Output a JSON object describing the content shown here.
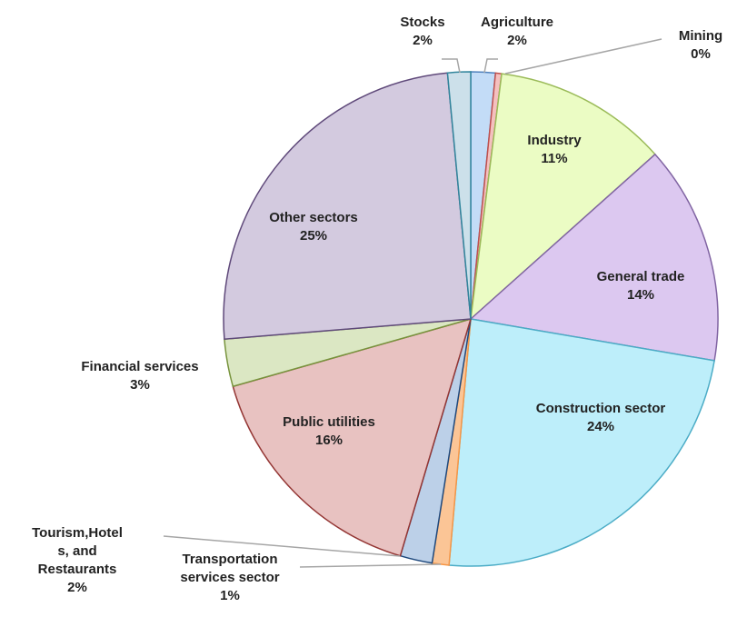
{
  "chart_data": {
    "type": "pie",
    "categories": [
      "Agriculture",
      "Mining",
      "Industry",
      "General trade",
      "Construction sector",
      "Transportation\nservices sector",
      "Tourism,Hotel\ns, and\nRestaurants",
      "Public utilities",
      "Financial services",
      "Other sectors",
      "Stocks"
    ],
    "values": [
      1.6,
      0.4,
      11.4,
      14.3,
      23.7,
      1.1,
      2.1,
      16.0,
      3.1,
      24.8,
      1.5
    ],
    "value_labels": [
      "2%",
      "0%",
      "11%",
      "14%",
      "24%",
      "1%",
      "2%",
      "16%",
      "3%",
      "25%",
      "2%"
    ],
    "colors": [
      "#c3dcf7",
      "#f4c0bf",
      "#ebfcc4",
      "#dcc8f0",
      "#bdeefa",
      "#fbc596",
      "#bcd0e8",
      "#e8c2c1",
      "#dbe7c3",
      "#d3cadf",
      "#cce0ea"
    ],
    "edge_colors": [
      "#4f81bd",
      "#c0504d",
      "#9bbb59",
      "#8064a2",
      "#4bacc6",
      "#f79646",
      "#1f497d",
      "#943634",
      "#77933c",
      "#5f497a",
      "#31859c"
    ]
  }
}
